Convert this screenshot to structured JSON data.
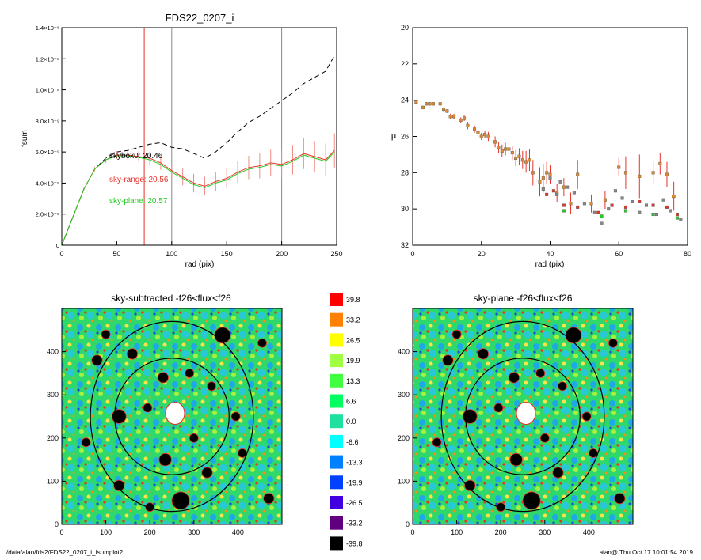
{
  "chart_data": [
    {
      "type": "line",
      "title": "FDS22_0207_i",
      "xlabel": "rad (pix)",
      "ylabel": "fsum",
      "xlim": [
        0,
        250
      ],
      "ylim": [
        0,
        1.4e-08
      ],
      "x_ticks": [
        "0",
        "50",
        "100",
        "150",
        "200",
        "250"
      ],
      "y_ticks": [
        "0",
        "2.0×10⁻⁹",
        "4.0×10⁻⁹",
        "6.0×10⁻⁹",
        "8.0×10⁻⁹",
        "1.0×10⁻⁸",
        "1.2×10⁻⁸",
        "1.4×10⁻⁸"
      ],
      "vertical_lines": [
        {
          "x": 75,
          "color": "#e8322a"
        },
        {
          "x": 100,
          "color": "#888888"
        },
        {
          "x": 200,
          "color": "#888888"
        }
      ],
      "annotations": [
        {
          "text": "skybox0: 20.46",
          "color": "#000000"
        },
        {
          "text": "sky-range: 20.56",
          "color": "#e8322a"
        },
        {
          "text": "sky-plane: 20.57",
          "color": "#22cc22"
        }
      ],
      "series": [
        {
          "style": "dashed",
          "color": "#000000",
          "x": [
            0,
            10,
            20,
            30,
            40,
            50,
            60,
            70,
            80,
            90,
            100,
            110,
            120,
            130,
            140,
            150,
            160,
            170,
            180,
            190,
            200,
            210,
            220,
            230,
            240,
            248
          ],
          "y": [
            0,
            1.8e-09,
            3.6e-09,
            4.9e-09,
            5.6e-09,
            6e-09,
            6.1e-09,
            6.3e-09,
            6.5e-09,
            6.6e-09,
            6.3e-09,
            6.2e-09,
            5.9e-09,
            5.6e-09,
            6e-09,
            6.6e-09,
            7.3e-09,
            7.9e-09,
            8.3e-09,
            8.8e-09,
            9.3e-09,
            9.8e-09,
            1.04e-08,
            1.08e-08,
            1.12e-08,
            1.22e-08
          ]
        },
        {
          "style": "solid",
          "color": "#e8322a",
          "error_color": "#f08c84",
          "x": [
            0,
            10,
            20,
            30,
            40,
            50,
            60,
            70,
            80,
            90,
            100,
            110,
            120,
            130,
            140,
            150,
            160,
            170,
            180,
            190,
            200,
            210,
            220,
            230,
            240,
            248
          ],
          "y": [
            0,
            1.8e-09,
            3.6e-09,
            4.9e-09,
            5.5e-09,
            5.8e-09,
            5.8e-09,
            5.7e-09,
            5.6e-09,
            5.3e-09,
            4.8e-09,
            4.4e-09,
            4e-09,
            3.8e-09,
            4.1e-09,
            4.3e-09,
            4.7e-09,
            5e-09,
            5.1e-09,
            5.3e-09,
            5.2e-09,
            5.5e-09,
            5.9e-09,
            5.7e-09,
            5.5e-09,
            6.1e-09
          ],
          "err": [
            0,
            5e-11,
            1e-10,
            1.5e-10,
            2e-10,
            2.5e-10,
            3e-10,
            3.5e-10,
            4e-10,
            4.5e-10,
            5e-10,
            5.5e-10,
            6e-10,
            6e-10,
            6e-10,
            6.5e-10,
            7e-10,
            7.5e-10,
            8e-10,
            8.5e-10,
            9e-10,
            9.5e-10,
            1e-09,
            1e-09,
            1.05e-09,
            1.1e-09
          ]
        },
        {
          "style": "solid",
          "color": "#22cc22",
          "x": [
            0,
            10,
            20,
            30,
            40,
            50,
            60,
            70,
            80,
            90,
            100,
            110,
            120,
            130,
            140,
            150,
            160,
            170,
            180,
            190,
            200,
            210,
            220,
            230,
            240,
            248
          ],
          "y": [
            0,
            1.8e-09,
            3.6e-09,
            4.9e-09,
            5.5e-09,
            5.75e-09,
            5.75e-09,
            5.65e-09,
            5.5e-09,
            5.2e-09,
            4.7e-09,
            4.3e-09,
            3.9e-09,
            3.7e-09,
            4e-09,
            4.2e-09,
            4.6e-09,
            4.9e-09,
            5e-09,
            5.2e-09,
            5.1e-09,
            5.4e-09,
            5.8e-09,
            5.6e-09,
            5.4e-09,
            6e-09
          ]
        }
      ]
    },
    {
      "type": "scatter",
      "title": "",
      "xlabel": "rad (pix)",
      "ylabel": "μ",
      "xlim": [
        0,
        80
      ],
      "ylim": [
        32,
        20
      ],
      "x_ticks": [
        "0",
        "20",
        "40",
        "60",
        "80"
      ],
      "y_ticks": [
        "20",
        "22",
        "24",
        "26",
        "28",
        "30",
        "32"
      ],
      "series": [
        {
          "color": "#e08a2a",
          "x": [
            1,
            3,
            4,
            5,
            6,
            8,
            9,
            10,
            11,
            12,
            14,
            15,
            16,
            18,
            19,
            20,
            21,
            22,
            24,
            25,
            26,
            27,
            28,
            29,
            30,
            31,
            32,
            33,
            34,
            35,
            37,
            38,
            39,
            40,
            42,
            44,
            46,
            48,
            52,
            56,
            60,
            62,
            66,
            70,
            72,
            74,
            76
          ],
          "y": [
            24.1,
            24.4,
            24.2,
            24.2,
            24.2,
            24.2,
            24.5,
            24.6,
            24.9,
            24.9,
            25.1,
            25.0,
            25.4,
            25.6,
            25.8,
            26.0,
            25.9,
            26.0,
            26.3,
            26.6,
            26.8,
            26.7,
            26.7,
            26.9,
            27.2,
            27.1,
            27.3,
            27.4,
            27.3,
            28.0,
            28.5,
            28.3,
            28.0,
            28.1,
            29.1,
            28.8,
            29.7,
            28.1,
            29.7,
            29.5,
            27.7,
            28.0,
            28.2,
            28.0,
            27.5,
            28.1,
            29.3
          ],
          "err": [
            0.1,
            0.1,
            0.1,
            0.1,
            0.1,
            0.1,
            0.1,
            0.1,
            0.15,
            0.15,
            0.15,
            0.15,
            0.2,
            0.2,
            0.2,
            0.2,
            0.2,
            0.25,
            0.3,
            0.3,
            0.35,
            0.35,
            0.4,
            0.4,
            0.45,
            0.45,
            0.5,
            0.6,
            0.6,
            0.7,
            0.8,
            0.8,
            0.6,
            0.5,
            0.5,
            0.5,
            0.6,
            0.8,
            0.5,
            0.5,
            0.5,
            0.9,
            1.2,
            0.6,
            0.6,
            0.7,
            0.8
          ]
        },
        {
          "color": "#e8322a",
          "x": [
            39,
            41,
            44,
            48,
            54,
            58,
            62,
            66,
            70,
            74,
            77
          ],
          "y": [
            29.2,
            29.0,
            29.8,
            29.9,
            30.2,
            29.8,
            29.9,
            29.6,
            29.8,
            29.9,
            30.3
          ]
        },
        {
          "color": "#888888",
          "x": [
            38,
            40,
            42,
            43,
            45,
            47,
            50,
            53,
            55,
            57,
            59,
            61,
            64,
            66,
            68,
            71,
            73,
            75,
            78
          ],
          "y": [
            28.9,
            28.3,
            29.2,
            28.5,
            28.8,
            29.1,
            29.7,
            30.2,
            30.8,
            30.0,
            29.0,
            29.4,
            29.6,
            30.2,
            29.8,
            30.3,
            29.5,
            30.1,
            30.6
          ]
        },
        {
          "color": "#22cc22",
          "x": [
            44,
            55,
            62,
            70,
            77
          ],
          "y": [
            30.1,
            30.4,
            30.1,
            30.3,
            30.5
          ]
        }
      ]
    },
    {
      "type": "heatmap",
      "title": "sky-subtracted -f26<flux<f26",
      "xlim": [
        0,
        500
      ],
      "ylim": [
        0,
        500
      ],
      "x_ticks": [
        "0",
        "100",
        "200",
        "300",
        "400"
      ],
      "y_ticks": [
        "0",
        "100",
        "200",
        "300",
        "400"
      ],
      "ellipses": [
        {
          "cx": 250,
          "cy": 250,
          "rx": 185,
          "ry": 220
        },
        {
          "cx": 250,
          "cy": 250,
          "rx": 130,
          "ry": 135
        }
      ],
      "blobs": [
        {
          "x": 270,
          "y": 55,
          "r": 20
        },
        {
          "x": 365,
          "y": 438,
          "r": 18
        },
        {
          "x": 235,
          "y": 150,
          "r": 14
        },
        {
          "x": 230,
          "y": 340,
          "r": 12
        },
        {
          "x": 195,
          "y": 270,
          "r": 10
        },
        {
          "x": 80,
          "y": 380,
          "r": 12
        },
        {
          "x": 130,
          "y": 250,
          "r": 16
        },
        {
          "x": 300,
          "y": 200,
          "r": 10
        },
        {
          "x": 130,
          "y": 90,
          "r": 12
        },
        {
          "x": 340,
          "y": 320,
          "r": 10
        },
        {
          "x": 160,
          "y": 395,
          "r": 12
        },
        {
          "x": 55,
          "y": 190,
          "r": 10
        },
        {
          "x": 290,
          "y": 350,
          "r": 10
        },
        {
          "x": 410,
          "y": 165,
          "r": 10
        },
        {
          "x": 455,
          "y": 420,
          "r": 10
        },
        {
          "x": 470,
          "y": 60,
          "r": 12
        },
        {
          "x": 330,
          "y": 120,
          "r": 12
        },
        {
          "x": 200,
          "y": 40,
          "r": 10
        },
        {
          "x": 395,
          "y": 250,
          "r": 10
        },
        {
          "x": 100,
          "y": 440,
          "r": 10
        }
      ]
    },
    {
      "type": "heatmap",
      "title": "sky-plane -f26<flux<f26",
      "xlim": [
        0,
        500
      ],
      "ylim": [
        0,
        500
      ],
      "x_ticks": [
        "0",
        "100",
        "200",
        "300",
        "400"
      ],
      "y_ticks": [
        "0",
        "100",
        "200",
        "300",
        "400"
      ],
      "ellipses": [
        {
          "cx": 250,
          "cy": 250,
          "rx": 185,
          "ry": 220
        },
        {
          "cx": 250,
          "cy": 250,
          "rx": 130,
          "ry": 135
        }
      ],
      "blobs": [
        {
          "x": 270,
          "y": 55,
          "r": 20
        },
        {
          "x": 365,
          "y": 438,
          "r": 18
        },
        {
          "x": 235,
          "y": 150,
          "r": 14
        },
        {
          "x": 230,
          "y": 340,
          "r": 12
        },
        {
          "x": 195,
          "y": 270,
          "r": 10
        },
        {
          "x": 80,
          "y": 380,
          "r": 12
        },
        {
          "x": 130,
          "y": 250,
          "r": 16
        },
        {
          "x": 300,
          "y": 200,
          "r": 10
        },
        {
          "x": 130,
          "y": 90,
          "r": 12
        },
        {
          "x": 340,
          "y": 320,
          "r": 10
        },
        {
          "x": 160,
          "y": 395,
          "r": 12
        },
        {
          "x": 55,
          "y": 190,
          "r": 10
        },
        {
          "x": 290,
          "y": 350,
          "r": 10
        },
        {
          "x": 410,
          "y": 165,
          "r": 10
        },
        {
          "x": 455,
          "y": 420,
          "r": 10
        },
        {
          "x": 470,
          "y": 60,
          "r": 12
        },
        {
          "x": 330,
          "y": 120,
          "r": 12
        },
        {
          "x": 200,
          "y": 40,
          "r": 10
        },
        {
          "x": 395,
          "y": 250,
          "r": 10
        },
        {
          "x": 100,
          "y": 440,
          "r": 10
        }
      ]
    }
  ],
  "colorbar": {
    "labels": [
      "39.8",
      "33.2",
      "26.5",
      "19.9",
      "13.3",
      "6.6",
      "0.0",
      "-6.6",
      "-13.3",
      "-19.9",
      "-26.5",
      "-33.2",
      "-39.8"
    ],
    "colors": [
      "#ff0000",
      "#ff8000",
      "#ffff00",
      "#a0ff40",
      "#40ff40",
      "#00ff60",
      "#20e0a0",
      "#00ffff",
      "#0080ff",
      "#0040ff",
      "#4000e0",
      "#600080",
      "#000000"
    ]
  },
  "footer": {
    "left": "/data/alan/fds2/FDS22_0207_i_fsumplot2",
    "right": "alan@  Thu Oct 17 10:01:54 2019"
  }
}
